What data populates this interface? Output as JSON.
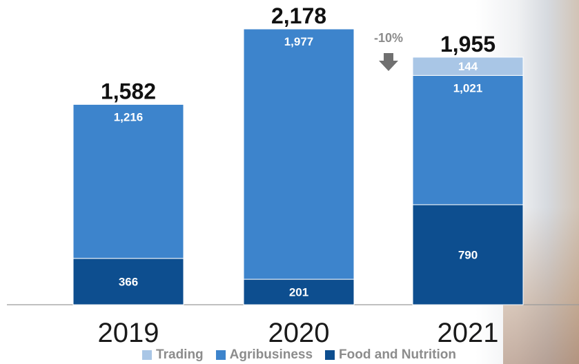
{
  "colors": {
    "trading": "#a9c6e6",
    "agribusiness": "#3d84cc",
    "food_and_nutrition": "#0d4e8f",
    "total_label": "#111111",
    "change_label": "#8c8c8c",
    "arrow": "#707070",
    "year_label": "#1a1a1a",
    "axis": "#9a9a9a"
  },
  "chart_data": {
    "type": "bar",
    "stacked": true,
    "categories": [
      "2019",
      "2020",
      "2021"
    ],
    "series": [
      {
        "name": "Food and Nutrition",
        "values": [
          366,
          201,
          790
        ],
        "labels": [
          "366",
          "201",
          "790"
        ],
        "color_key": "food_and_nutrition"
      },
      {
        "name": "Agribusiness",
        "values": [
          1216,
          1977,
          1021
        ],
        "labels": [
          "1,216",
          "1,977",
          "1,021"
        ],
        "color_key": "agribusiness"
      },
      {
        "name": "Trading",
        "values": [
          0,
          0,
          144
        ],
        "labels": [
          "",
          "",
          "144"
        ],
        "color_key": "trading"
      }
    ],
    "totals": [
      1582,
      2178,
      1955
    ],
    "total_labels": [
      "1,582",
      "2,178",
      "1,955"
    ],
    "annotation": {
      "text": "-10%",
      "between": [
        "2020",
        "2021"
      ]
    },
    "ylim": [
      0,
      2178
    ],
    "grid": false,
    "legend_position": "bottom"
  },
  "legend": [
    {
      "label": "Trading",
      "color_key": "trading"
    },
    {
      "label": "Agribusiness",
      "color_key": "agribusiness"
    },
    {
      "label": "Food and Nutrition",
      "color_key": "food_and_nutrition"
    }
  ]
}
